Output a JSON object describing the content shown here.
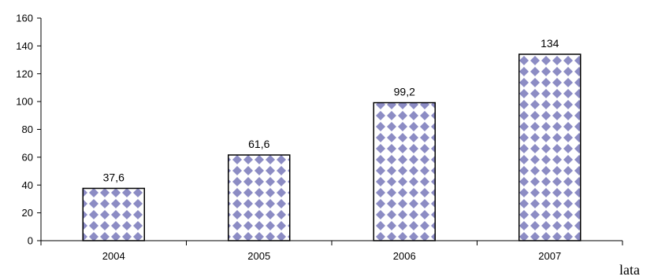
{
  "chart_data": {
    "type": "bar",
    "categories": [
      "2004",
      "2005",
      "2006",
      "2007"
    ],
    "values": [
      37.6,
      61.6,
      99.2,
      134
    ],
    "data_labels": [
      "37,6",
      "61,6",
      "99,2",
      "134"
    ],
    "title": "",
    "xlabel": "lata",
    "ylabel": "",
    "ylim": [
      0,
      160
    ],
    "yticks": [
      0,
      20,
      40,
      60,
      80,
      100,
      120,
      140,
      160
    ],
    "grid": false,
    "legend": "none",
    "bar_fill_pattern": "checkered-diamond",
    "colors": {
      "pattern": "#8c8cc4",
      "bar_background": "#ffffff",
      "bar_border": "#000000",
      "axis": "#000000"
    }
  }
}
